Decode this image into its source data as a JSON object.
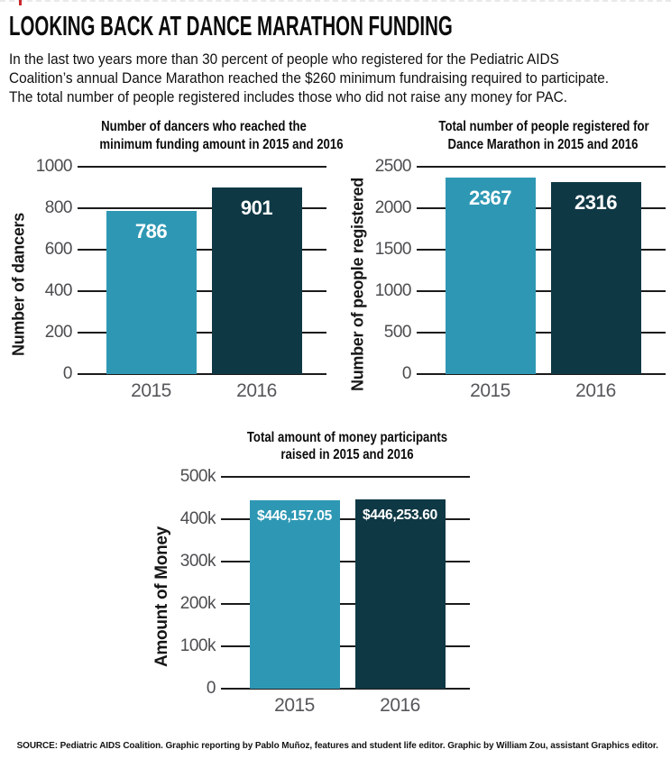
{
  "page": {
    "title": "LOOKING BACK AT DANCE MARATHON FUNDING",
    "intro_lines": [
      "In the last two years more than 30 percent of people who registered for the Pediatric AIDS",
      "Coalition’s annual Dance Marathon reached the $260 minimum fundraising required to participate.",
      "The total number of people registered includes those who did not raise any money for PAC."
    ],
    "source": "SOURCE: Pediatric AIDS Coalition. Graphic reporting by Pablo Muñoz, features and student life editor. Graphic by William Zou, assistant Graphics editor."
  },
  "colors": {
    "bar_2015": "#2e98b4",
    "bar_2016": "#0f3845",
    "gridline": "#1b1b1b",
    "tick_text": "#4c4d4f",
    "category_text": "#56575b",
    "accent_red": "#c9282d"
  },
  "chart_data": [
    {
      "type": "bar",
      "title": "Number of dancers who reached the minimum funding amount in 2015 and 2016",
      "title_lines": [
        "Number of dancers who reached the",
        "minimum funding amount in 2015 and 2016"
      ],
      "ylabel": "Number of dancers",
      "xlabel": "",
      "categories": [
        "2015",
        "2016"
      ],
      "values": [
        786,
        901
      ],
      "bar_labels": [
        "786",
        "901"
      ],
      "bar_colors": [
        "#2e98b4",
        "#0f3845"
      ],
      "ylim": [
        0,
        1000
      ],
      "yticks": [
        0,
        200,
        400,
        600,
        800,
        1000
      ],
      "ytick_labels": [
        "0",
        "200",
        "400",
        "600",
        "800",
        "1000"
      ],
      "grid": true,
      "legend": "none"
    },
    {
      "type": "bar",
      "title": "Total number of people registered for Dance Marathon in 2015 and 2016",
      "title_lines": [
        "Total number of people registered for",
        "Dance Marathon in 2015 and 2016"
      ],
      "ylabel": "Number of people registered",
      "xlabel": "",
      "categories": [
        "2015",
        "2016"
      ],
      "values": [
        2367,
        2316
      ],
      "bar_labels": [
        "2367",
        "2316"
      ],
      "bar_colors": [
        "#2e98b4",
        "#0f3845"
      ],
      "ylim": [
        0,
        2500
      ],
      "yticks": [
        0,
        500,
        1000,
        1500,
        2000,
        2500
      ],
      "ytick_labels": [
        "0",
        "500",
        "1000",
        "1500",
        "2000",
        "2500"
      ],
      "grid": true,
      "legend": "none"
    },
    {
      "type": "bar",
      "title": "Total amount of money participants raised in 2015 and 2016",
      "title_lines": [
        "Total amount of money participants",
        "raised in 2015 and 2016"
      ],
      "ylabel": "Amount of Money",
      "xlabel": "",
      "categories": [
        "2015",
        "2016"
      ],
      "values": [
        446157.05,
        446253.6
      ],
      "bar_labels": [
        "$446,157.05",
        "$446,253.60"
      ],
      "bar_colors": [
        "#2e98b4",
        "#0f3845"
      ],
      "ylim": [
        0,
        500000
      ],
      "yticks": [
        0,
        100000,
        200000,
        300000,
        400000,
        500000
      ],
      "ytick_labels": [
        "0",
        "100k",
        "200k",
        "300k",
        "400k",
        "500k"
      ],
      "grid": true,
      "legend": "none"
    }
  ]
}
